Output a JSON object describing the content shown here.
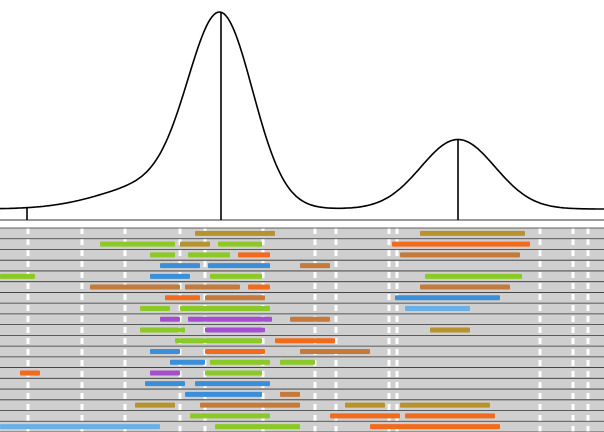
{
  "chart_data": {
    "type": "area",
    "title": "",
    "xlabel": "",
    "ylabel": "",
    "grid": false,
    "legend": "none",
    "xlim": [
      0,
      604
    ],
    "density_curve": {
      "peaks": [
        {
          "center": 221,
          "height": 1.0,
          "width": 32
        },
        {
          "center": 458,
          "height": 0.38,
          "width": 37
        },
        {
          "center": 160,
          "height": 0.14,
          "width": 55
        }
      ],
      "baseline": 0.06,
      "markers": [
        27,
        221,
        458
      ]
    },
    "track_panel": {
      "background": "#cfcfcf",
      "separator_color": "#333333",
      "rows": 19,
      "white_columns": [
        28,
        82,
        125,
        180,
        205,
        263,
        315,
        336,
        389,
        397,
        540,
        573,
        588
      ],
      "colors": {
        "olive": "#b8922c",
        "orange": "#f26a1b",
        "green": "#8ac926",
        "blue": "#3a8fd8",
        "purple": "#a54fd0",
        "brown": "#c47a3a",
        "lightblue": "#6ab0e6"
      },
      "segments": [
        [
          0,
          195,
          275,
          "olive"
        ],
        [
          0,
          420,
          525,
          "olive"
        ],
        [
          1,
          100,
          175,
          "green"
        ],
        [
          1,
          180,
          210,
          "olive"
        ],
        [
          1,
          218,
          262,
          "green"
        ],
        [
          1,
          392,
          530,
          "orange"
        ],
        [
          2,
          150,
          175,
          "green"
        ],
        [
          2,
          188,
          230,
          "green"
        ],
        [
          2,
          238,
          270,
          "orange"
        ],
        [
          2,
          400,
          520,
          "brown"
        ],
        [
          3,
          160,
          200,
          "blue"
        ],
        [
          3,
          208,
          270,
          "blue"
        ],
        [
          3,
          300,
          330,
          "brown"
        ],
        [
          4,
          0,
          35,
          "green"
        ],
        [
          4,
          150,
          190,
          "blue"
        ],
        [
          4,
          210,
          262,
          "green"
        ],
        [
          4,
          425,
          522,
          "green"
        ],
        [
          5,
          90,
          180,
          "brown"
        ],
        [
          5,
          185,
          240,
          "brown"
        ],
        [
          5,
          248,
          270,
          "orange"
        ],
        [
          5,
          420,
          510,
          "brown"
        ],
        [
          6,
          165,
          200,
          "orange"
        ],
        [
          6,
          205,
          265,
          "brown"
        ],
        [
          6,
          395,
          500,
          "blue"
        ],
        [
          7,
          140,
          170,
          "green"
        ],
        [
          7,
          180,
          270,
          "green"
        ],
        [
          7,
          405,
          470,
          "lightblue"
        ],
        [
          8,
          160,
          180,
          "purple"
        ],
        [
          8,
          188,
          272,
          "purple"
        ],
        [
          8,
          290,
          330,
          "brown"
        ],
        [
          9,
          140,
          185,
          "green"
        ],
        [
          9,
          205,
          265,
          "purple"
        ],
        [
          9,
          430,
          470,
          "olive"
        ],
        [
          10,
          175,
          262,
          "green"
        ],
        [
          10,
          275,
          335,
          "orange"
        ],
        [
          11,
          150,
          180,
          "blue"
        ],
        [
          11,
          205,
          265,
          "orange"
        ],
        [
          11,
          300,
          370,
          "brown"
        ],
        [
          12,
          170,
          205,
          "blue"
        ],
        [
          12,
          210,
          270,
          "green"
        ],
        [
          12,
          280,
          315,
          "green"
        ],
        [
          13,
          20,
          40,
          "orange"
        ],
        [
          13,
          150,
          180,
          "purple"
        ],
        [
          13,
          205,
          262,
          "green"
        ],
        [
          14,
          145,
          185,
          "blue"
        ],
        [
          14,
          195,
          270,
          "blue"
        ],
        [
          15,
          185,
          262,
          "blue"
        ],
        [
          15,
          280,
          300,
          "brown"
        ],
        [
          16,
          135,
          175,
          "olive"
        ],
        [
          16,
          200,
          300,
          "brown"
        ],
        [
          16,
          345,
          385,
          "olive"
        ],
        [
          16,
          400,
          490,
          "olive"
        ],
        [
          17,
          190,
          270,
          "green"
        ],
        [
          17,
          330,
          400,
          "orange"
        ],
        [
          17,
          405,
          495,
          "orange"
        ],
        [
          18,
          0,
          160,
          "lightblue"
        ],
        [
          18,
          215,
          300,
          "green"
        ],
        [
          18,
          370,
          500,
          "orange"
        ]
      ]
    }
  }
}
